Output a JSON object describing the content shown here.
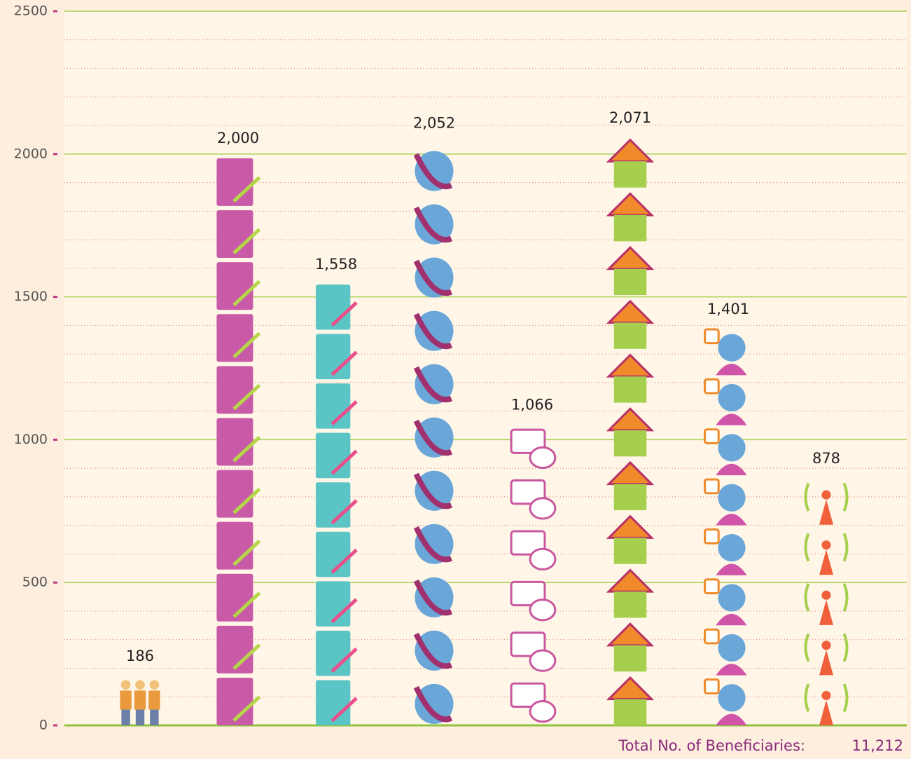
{
  "chart_data": {
    "type": "pictograph",
    "categories": [
      null,
      null,
      null,
      null,
      null,
      null,
      null,
      null
    ],
    "values": [
      186,
      2000,
      1558,
      2052,
      1066,
      2071,
      1401,
      878
    ],
    "value_labels": [
      "186",
      "2,000",
      "1,558",
      "2,052",
      "1,066",
      "2,071",
      "1,401",
      "878"
    ],
    "colors": [
      "#e89a3c",
      "#c95aa8",
      "#5bc4c4",
      "#6aa7d8",
      "#c9579f",
      "#a5cf4c",
      "#6aa7d8",
      "#a5cf4c"
    ],
    "ylim": [
      0,
      2500
    ],
    "yticks": [
      0,
      500,
      1000,
      1500,
      2000,
      2500
    ],
    "yminorticks": [
      100,
      200,
      300,
      400,
      600,
      700,
      800,
      900,
      1100,
      1200,
      1300,
      1400,
      1600,
      1700,
      1800,
      1900,
      2100,
      2200,
      2300,
      2400
    ],
    "grid": true,
    "total_label": "Total No. of Beneficiaries:",
    "total_value": "11,212"
  }
}
